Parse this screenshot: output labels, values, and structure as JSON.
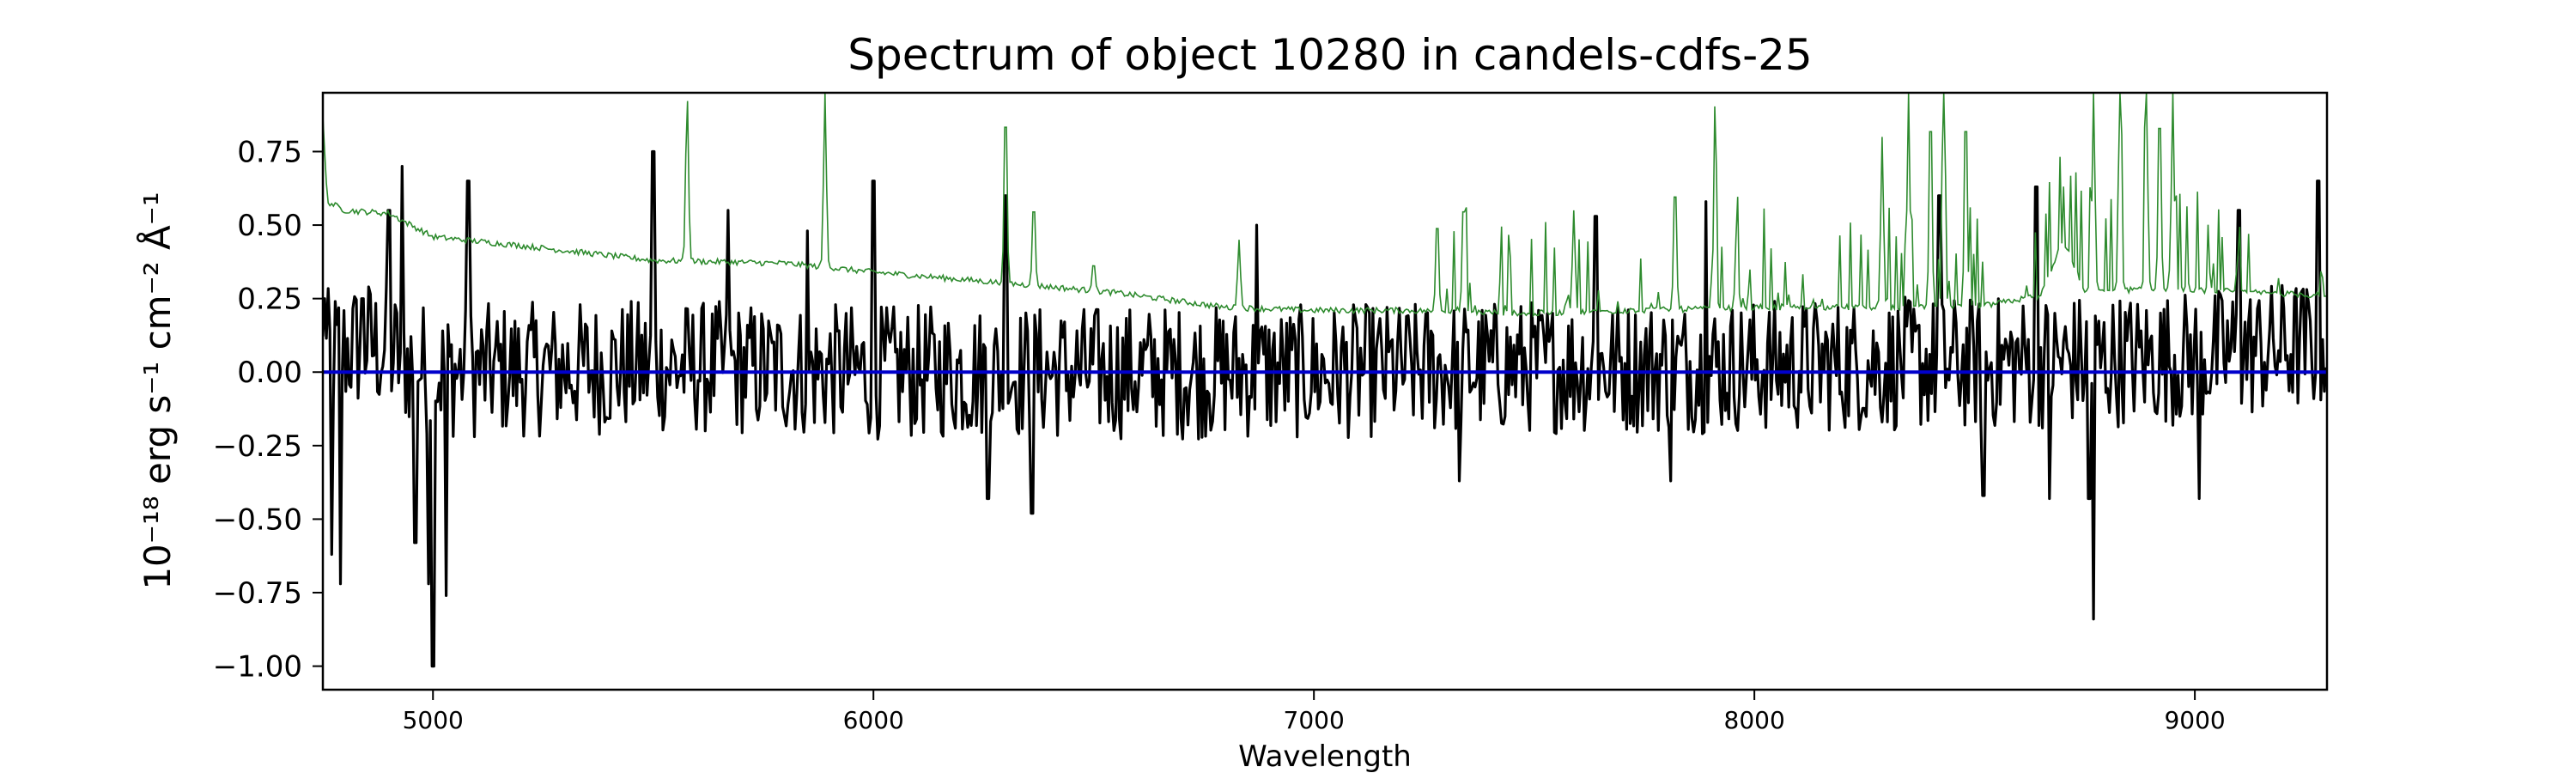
{
  "chart_data": {
    "type": "line",
    "title": "Spectrum of object 10280 in candels-cdfs-25",
    "xlabel": "Wavelength",
    "ylabel": "10⁻¹⁸ erg s⁻¹ cm⁻² Å⁻¹",
    "xlim": [
      4750,
      9300
    ],
    "ylim": [
      -1.08,
      0.95
    ],
    "xticks": [
      5000,
      6000,
      7000,
      8000,
      9000
    ],
    "yticks": [
      0.75,
      0.5,
      0.25,
      0.0,
      -0.25,
      -0.5,
      -0.75,
      -1.0
    ],
    "ytick_labels": [
      "0.75",
      "0.50",
      "0.25",
      "0.00",
      "−0.25",
      "−0.50",
      "−0.75",
      "−1.00"
    ],
    "grid": false,
    "series": [
      {
        "role": "flux",
        "color": "#000000",
        "noise_baseline": [
          [
            4750,
            0.05
          ],
          [
            4850,
            0.1
          ],
          [
            5000,
            0.0
          ],
          [
            5500,
            0.02
          ],
          [
            6000,
            0.0
          ],
          [
            7000,
            0.0
          ],
          [
            7500,
            0.02
          ],
          [
            8000,
            0.02
          ],
          [
            8500,
            0.03
          ],
          [
            9000,
            0.05
          ],
          [
            9300,
            0.1
          ]
        ],
        "features": [
          [
            4755,
            0.25
          ],
          [
            4770,
            -0.62
          ],
          [
            4790,
            -0.72
          ],
          [
            4840,
            0.25
          ],
          [
            4900,
            0.55
          ],
          [
            4930,
            0.7
          ],
          [
            4960,
            -0.58
          ],
          [
            4990,
            -0.72
          ],
          [
            5000,
            -1.0
          ],
          [
            5030,
            -0.76
          ],
          [
            5080,
            0.65
          ],
          [
            5500,
            0.75
          ],
          [
            5670,
            0.55
          ],
          [
            5850,
            0.48
          ],
          [
            6000,
            0.65
          ],
          [
            6260,
            -0.43
          ],
          [
            6300,
            0.6
          ],
          [
            6360,
            -0.48
          ],
          [
            6870,
            0.5
          ],
          [
            7330,
            -0.37
          ],
          [
            7640,
            0.53
          ],
          [
            7810,
            -0.37
          ],
          [
            7890,
            0.58
          ],
          [
            8420,
            0.6
          ],
          [
            8520,
            -0.42
          ],
          [
            8640,
            0.63
          ],
          [
            8670,
            -0.43
          ],
          [
            8760,
            -0.43
          ],
          [
            8770,
            -0.84
          ],
          [
            9010,
            -0.43
          ],
          [
            9100,
            0.55
          ],
          [
            9280,
            0.65
          ]
        ]
      },
      {
        "role": "sky",
        "color": "#2e8b2e",
        "continuum": [
          [
            4750,
            0.86
          ],
          [
            4760,
            0.58
          ],
          [
            4800,
            0.55
          ],
          [
            4900,
            0.54
          ],
          [
            5000,
            0.46
          ],
          [
            5200,
            0.43
          ],
          [
            5500,
            0.38
          ],
          [
            5800,
            0.37
          ],
          [
            6000,
            0.34
          ],
          [
            6400,
            0.29
          ],
          [
            6550,
            0.27
          ],
          [
            6800,
            0.22
          ],
          [
            7000,
            0.21
          ],
          [
            7200,
            0.21
          ],
          [
            7500,
            0.2
          ],
          [
            8000,
            0.22
          ],
          [
            8500,
            0.22
          ],
          [
            8650,
            0.26
          ],
          [
            8700,
            0.45
          ],
          [
            8750,
            0.28
          ],
          [
            9000,
            0.28
          ],
          [
            9300,
            0.26
          ]
        ],
        "emission_lines": [
          [
            5577,
            0.95
          ],
          [
            5890,
            0.95
          ],
          [
            6300,
            0.95
          ],
          [
            6364,
            0.6
          ],
          [
            6500,
            0.38
          ],
          [
            6830,
            0.45
          ],
          [
            7280,
            0.55
          ],
          [
            7340,
            0.62
          ],
          [
            7590,
            0.55
          ],
          [
            7820,
            0.68
          ],
          [
            7910,
            0.66
          ],
          [
            7960,
            0.5
          ],
          [
            8290,
            0.8
          ],
          [
            8350,
            0.95
          ],
          [
            8400,
            0.95
          ],
          [
            8430,
            0.95
          ],
          [
            8480,
            0.95
          ],
          [
            8770,
            0.95
          ],
          [
            8830,
            0.95
          ],
          [
            8890,
            0.95
          ],
          [
            8920,
            0.95
          ],
          [
            8950,
            0.95
          ]
        ]
      },
      {
        "role": "zero",
        "color": "#0000cc",
        "points": [
          [
            4750,
            0.0
          ],
          [
            9300,
            0.0
          ]
        ]
      }
    ]
  }
}
